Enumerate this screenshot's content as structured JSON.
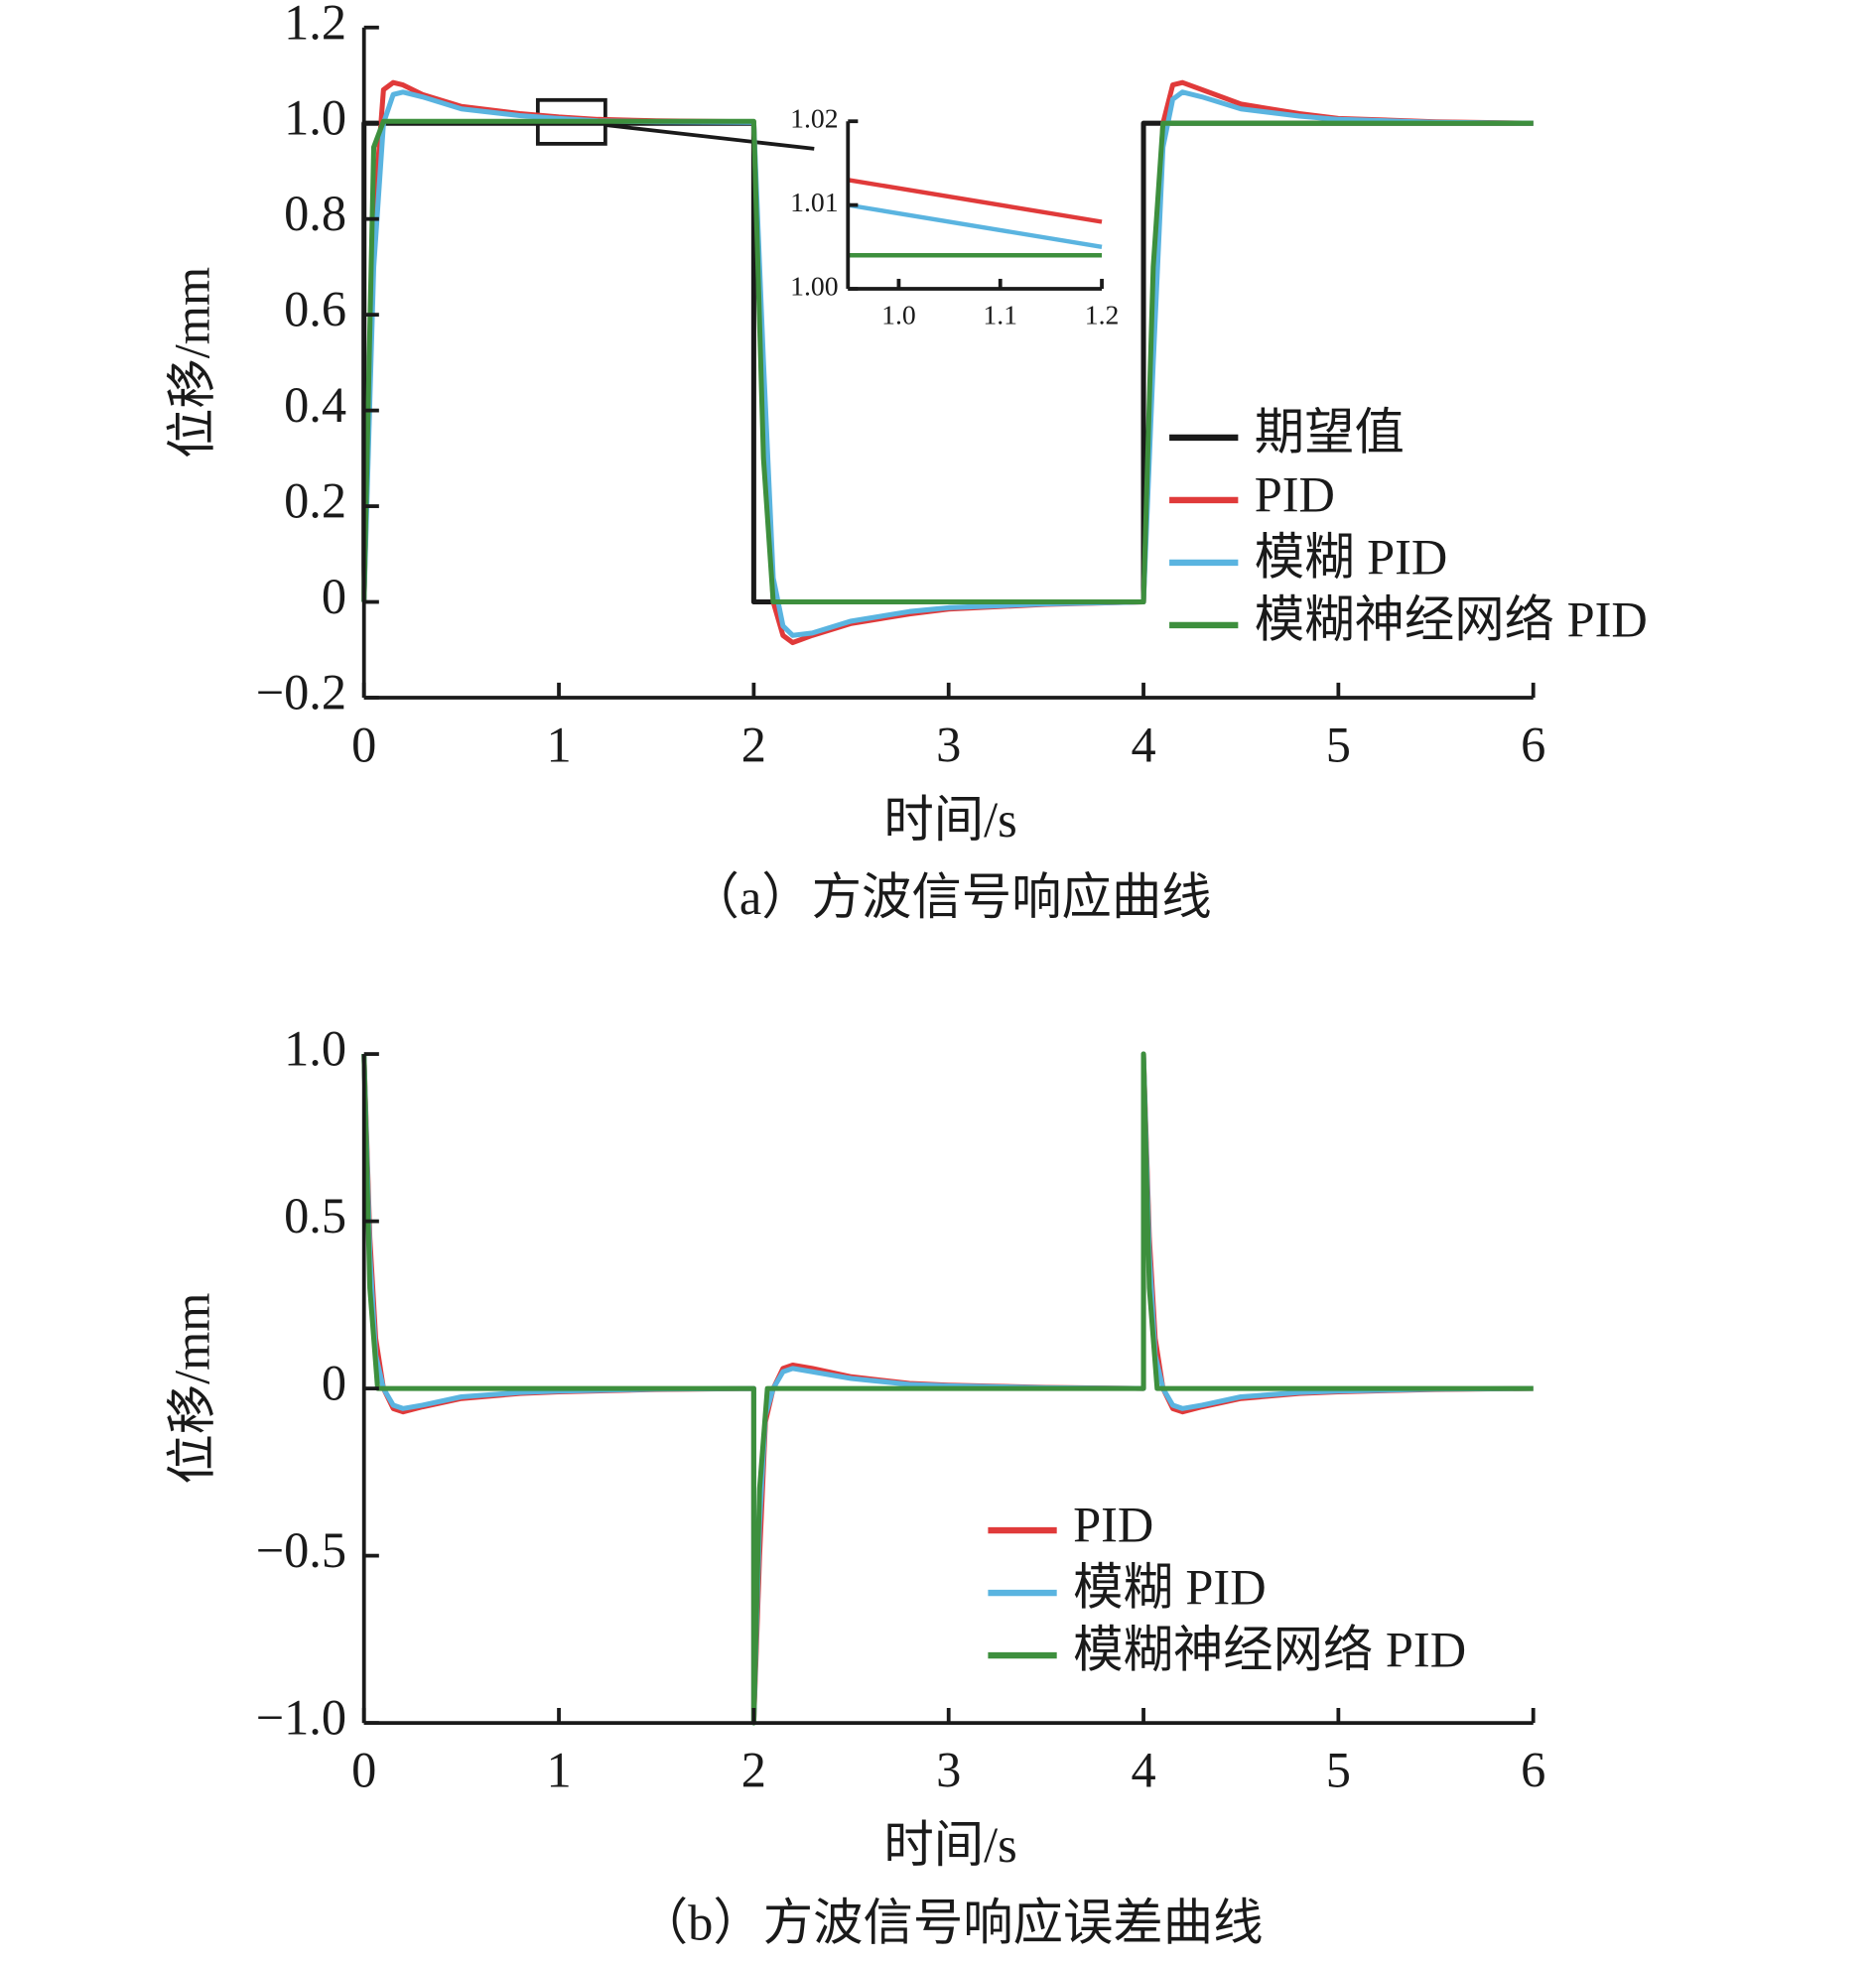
{
  "chart_data": [
    {
      "type": "line",
      "ylabel": "位移/mm",
      "xlabel": "时间/s",
      "caption": "（a）方波信号响应曲线",
      "xlim": [
        0,
        6
      ],
      "ylim": [
        -0.2,
        1.2
      ],
      "xticks": [
        0,
        1,
        2,
        3,
        4,
        5,
        6
      ],
      "yticks": [
        {
          "value": -0.2,
          "label": "−0.2"
        },
        0,
        0.2,
        0.4,
        0.6,
        0.8,
        {
          "value": 1,
          "label": "1.0"
        },
        1.2
      ],
      "series": [
        {
          "name": "期望值",
          "color": "#1a1a1a",
          "x": [
            0,
            0,
            2,
            2,
            4,
            4,
            6
          ],
          "values": [
            0,
            1,
            1,
            0,
            0,
            1,
            1
          ]
        },
        {
          "name": "PID",
          "color": "#e03a3a",
          "x": [
            0,
            0.05,
            0.1,
            0.15,
            0.2,
            0.3,
            0.5,
            0.8,
            1.0,
            1.2,
            1.5,
            2.0,
            2.05,
            2.1,
            2.15,
            2.2,
            2.3,
            2.5,
            2.8,
            3.0,
            3.5,
            4.0,
            4.05,
            4.1,
            4.15,
            4.2,
            4.3,
            4.5,
            4.8,
            5.0,
            5.5,
            6.0
          ],
          "values": [
            0,
            0.8,
            1.07,
            1.085,
            1.08,
            1.06,
            1.035,
            1.02,
            1.013,
            1.008,
            1.005,
            1.003,
            0.4,
            0.0,
            -0.07,
            -0.085,
            -0.07,
            -0.045,
            -0.025,
            -0.015,
            -0.005,
            0,
            0.6,
            1.0,
            1.08,
            1.085,
            1.07,
            1.04,
            1.02,
            1.01,
            1.003,
            1.0
          ]
        },
        {
          "name": "模糊 PID",
          "color": "#5ab4e0",
          "x": [
            0,
            0.05,
            0.1,
            0.15,
            0.2,
            0.3,
            0.5,
            0.8,
            1.0,
            1.2,
            1.5,
            2.0,
            2.05,
            2.1,
            2.15,
            2.2,
            2.3,
            2.5,
            2.8,
            3.0,
            3.5,
            4.0,
            4.05,
            4.1,
            4.15,
            4.2,
            4.3,
            4.5,
            4.8,
            5.0,
            5.5,
            6.0
          ],
          "values": [
            0,
            0.7,
            1.0,
            1.06,
            1.065,
            1.055,
            1.03,
            1.016,
            1.01,
            1.005,
            1.003,
            1.002,
            0.5,
            0.05,
            -0.05,
            -0.07,
            -0.065,
            -0.04,
            -0.02,
            -0.012,
            -0.004,
            0,
            0.5,
            0.95,
            1.05,
            1.065,
            1.055,
            1.03,
            1.015,
            1.008,
            1.002,
            1.0
          ]
        },
        {
          "name": "模糊神经网络 PID",
          "color": "#3d8f3d",
          "x": [
            0,
            0.05,
            0.1,
            2.0,
            2.05,
            2.1,
            4.0,
            4.05,
            4.1,
            6.0
          ],
          "values": [
            0,
            0.95,
            1.004,
            1.004,
            0.3,
            0.0,
            0.0,
            0.7,
            1.0,
            1.0
          ]
        }
      ]
    },
    {
      "type": "line",
      "xlim": [
        0.95,
        1.2
      ],
      "ylim": [
        1.0,
        1.02
      ],
      "xticks": [
        {
          "value": 1,
          "label": "1.0"
        },
        1.1,
        1.2
      ],
      "yticks": [
        {
          "value": 1,
          "label": "1.00"
        },
        1.01,
        1.02
      ],
      "series": [
        {
          "color": "#e03a3a",
          "x": [
            0.95,
            1.2
          ],
          "values": [
            1.013,
            1.008
          ]
        },
        {
          "color": "#5ab4e0",
          "x": [
            0.95,
            1.2
          ],
          "values": [
            1.01,
            1.005
          ]
        },
        {
          "color": "#3d8f3d",
          "x": [
            0.95,
            1.2
          ],
          "values": [
            1.004,
            1.004
          ]
        }
      ]
    },
    {
      "type": "line",
      "ylabel": "位移/mm",
      "xlabel": "时间/s",
      "caption": "（b）方波信号响应误差曲线",
      "xlim": [
        0,
        6
      ],
      "ylim": [
        -1,
        1
      ],
      "xticks": [
        0,
        1,
        2,
        3,
        4,
        5,
        6
      ],
      "yticks": [
        {
          "value": -1,
          "label": "−1.0"
        },
        {
          "value": -0.5,
          "label": "−0.5"
        },
        0,
        0.5,
        {
          "value": 1,
          "label": "1.0"
        }
      ],
      "series": [
        {
          "name": "PID",
          "color": "#e03a3a",
          "x": [
            0,
            0.03,
            0.06,
            0.1,
            0.15,
            0.2,
            0.3,
            0.5,
            0.8,
            1.0,
            1.5,
            2.0,
            2.0,
            2.03,
            2.06,
            2.1,
            2.15,
            2.2,
            2.3,
            2.5,
            2.8,
            3.0,
            3.5,
            4.0,
            4.0,
            4.03,
            4.06,
            4.1,
            4.15,
            4.2,
            4.3,
            4.5,
            4.8,
            5.0,
            5.5,
            6.0
          ],
          "values": [
            1,
            0.45,
            0.15,
            0,
            -0.06,
            -0.07,
            -0.055,
            -0.03,
            -0.015,
            -0.01,
            -0.003,
            0,
            -1,
            -0.5,
            -0.1,
            0,
            0.06,
            0.07,
            0.06,
            0.035,
            0.015,
            0.01,
            0.003,
            0,
            1,
            0.45,
            0.15,
            0,
            -0.06,
            -0.07,
            -0.055,
            -0.03,
            -0.015,
            -0.01,
            -0.003,
            0
          ]
        },
        {
          "name": "模糊 PID",
          "color": "#5ab4e0",
          "x": [
            0,
            0.03,
            0.06,
            0.1,
            0.15,
            0.2,
            0.3,
            0.5,
            0.8,
            1.0,
            1.5,
            2.0,
            2.0,
            2.03,
            2.06,
            2.1,
            2.15,
            2.2,
            2.3,
            2.5,
            2.8,
            3.0,
            3.5,
            4.0,
            4.0,
            4.03,
            4.06,
            4.1,
            4.15,
            4.2,
            4.3,
            4.5,
            4.8,
            5.0,
            5.5,
            6.0
          ],
          "values": [
            1,
            0.4,
            0.1,
            0,
            -0.05,
            -0.06,
            -0.05,
            -0.025,
            -0.012,
            -0.008,
            -0.002,
            0,
            -1,
            -0.4,
            -0.08,
            0,
            0.05,
            0.06,
            0.05,
            0.03,
            0.012,
            0.008,
            0.002,
            0,
            1,
            0.4,
            0.1,
            0,
            -0.05,
            -0.06,
            -0.05,
            -0.025,
            -0.012,
            -0.008,
            -0.002,
            0
          ]
        },
        {
          "name": "模糊神经网络 PID",
          "color": "#3d8f3d",
          "x": [
            0,
            0.03,
            0.07,
            2.0,
            2.0,
            2.03,
            2.07,
            4.0,
            4.0,
            4.03,
            4.07,
            6.0
          ],
          "values": [
            1,
            0.3,
            0,
            0,
            -1,
            -0.3,
            0,
            0,
            1,
            0.3,
            0,
            0
          ]
        }
      ]
    }
  ]
}
